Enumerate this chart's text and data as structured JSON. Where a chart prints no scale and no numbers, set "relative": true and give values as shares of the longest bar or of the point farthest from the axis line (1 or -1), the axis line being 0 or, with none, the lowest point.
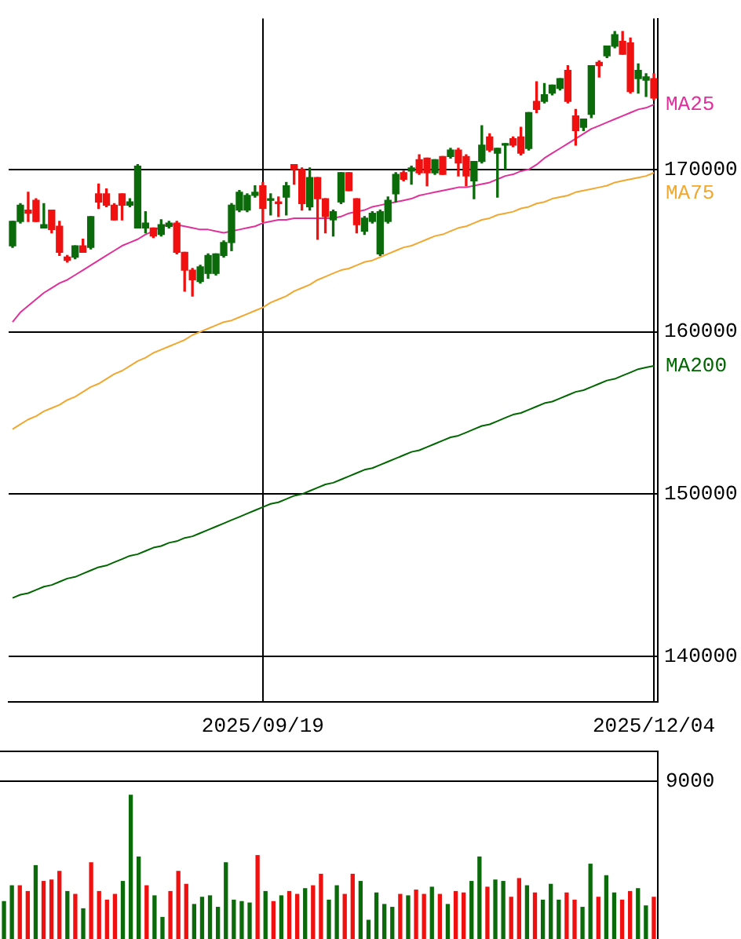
{
  "chart_data": [
    {
      "type": "candlestick",
      "categories": [
        null,
        null,
        null,
        null,
        null,
        null,
        null,
        null,
        null,
        null,
        null,
        null,
        null,
        null,
        null,
        null,
        null,
        null,
        null,
        null,
        null,
        null,
        null,
        null,
        null,
        null,
        null,
        null,
        null,
        null,
        null,
        null,
        "2025/09/19",
        null,
        null,
        null,
        null,
        null,
        null,
        null,
        null,
        null,
        null,
        null,
        null,
        null,
        null,
        null,
        null,
        null,
        null,
        null,
        null,
        null,
        null,
        null,
        null,
        null,
        null,
        null,
        null,
        null,
        null,
        null,
        null,
        null,
        null,
        null,
        null,
        null,
        null,
        null,
        null,
        null,
        null,
        null,
        null,
        null,
        null,
        null,
        null,
        null,
        "2025/12/04"
      ],
      "ohlc": [
        [
          165300,
          166800,
          165200,
          166800
        ],
        [
          166800,
          167900,
          166700,
          167800
        ],
        [
          167500,
          168600,
          166800,
          167300
        ],
        [
          168100,
          168200,
          166800,
          166800
        ],
        [
          166400,
          167900,
          166400,
          166600
        ],
        [
          167500,
          167500,
          166100,
          166300
        ],
        [
          166500,
          166800,
          164700,
          164900
        ],
        [
          164600,
          164700,
          164300,
          164400
        ],
        [
          164600,
          165300,
          164500,
          165300
        ],
        [
          165300,
          165700,
          164900,
          164900
        ],
        [
          165200,
          167100,
          165100,
          167100
        ],
        [
          168500,
          169100,
          167600,
          168000
        ],
        [
          168500,
          168800,
          167700,
          167800
        ],
        [
          167800,
          167900,
          166900,
          166900
        ],
        [
          168500,
          168500,
          166900,
          167800
        ],
        [
          167800,
          168200,
          167700,
          168000
        ],
        [
          166400,
          170300,
          166400,
          170200
        ],
        [
          166400,
          167400,
          166100,
          166700
        ],
        [
          166400,
          166400,
          165800,
          165900
        ],
        [
          166000,
          166900,
          165900,
          166600
        ],
        [
          166500,
          166800,
          166400,
          166700
        ],
        [
          166700,
          166800,
          164800,
          164900
        ],
        [
          164900,
          164900,
          162500,
          163800
        ],
        [
          163800,
          163900,
          162200,
          163200
        ],
        [
          163100,
          164100,
          163000,
          164000
        ],
        [
          163600,
          164800,
          163300,
          164700
        ],
        [
          163600,
          164800,
          163500,
          164800
        ],
        [
          164700,
          165600,
          164600,
          165500
        ],
        [
          165500,
          167900,
          165000,
          167800
        ],
        [
          167500,
          168700,
          167400,
          168600
        ],
        [
          167500,
          168500,
          167400,
          168400
        ],
        [
          168400,
          169000,
          168300,
          168600
        ],
        [
          169000,
          169200,
          166800,
          167600
        ],
        [
          168100,
          168500,
          167200,
          168200
        ],
        [
          168000,
          168300,
          167100,
          167900
        ],
        [
          168300,
          169200,
          167200,
          169000
        ],
        [
          170300,
          170300,
          169100,
          170000
        ],
        [
          170000,
          170100,
          167500,
          167900
        ],
        [
          167700,
          170100,
          167500,
          169500
        ],
        [
          169500,
          169500,
          165700,
          168200
        ],
        [
          168200,
          168200,
          166100,
          167100
        ],
        [
          166900,
          167500,
          165900,
          167400
        ],
        [
          168000,
          169800,
          167900,
          169800
        ],
        [
          169800,
          169800,
          168700,
          168700
        ],
        [
          168200,
          168200,
          166100,
          166600
        ],
        [
          166200,
          167100,
          166000,
          167000
        ],
        [
          166800,
          167400,
          166700,
          167300
        ],
        [
          164800,
          167500,
          164700,
          167400
        ],
        [
          166800,
          168300,
          166700,
          168100
        ],
        [
          168500,
          169800,
          168000,
          169700
        ],
        [
          169800,
          169900,
          169300,
          169400
        ],
        [
          169900,
          170200,
          169100,
          170100
        ],
        [
          170600,
          170900,
          169700,
          169800
        ],
        [
          170700,
          170700,
          169000,
          169800
        ],
        [
          169800,
          170600,
          169700,
          170600
        ],
        [
          170800,
          170800,
          169700,
          169700
        ],
        [
          170800,
          171300,
          170700,
          171200
        ],
        [
          171200,
          171300,
          169600,
          170400
        ],
        [
          170800,
          170900,
          169000,
          169600
        ],
        [
          169300,
          170500,
          168200,
          170500
        ],
        [
          170500,
          172700,
          170400,
          171500
        ],
        [
          172000,
          172200,
          171100,
          171200
        ],
        [
          171000,
          171300,
          168300,
          171300
        ],
        [
          171500,
          171600,
          170000,
          171600
        ],
        [
          171900,
          172000,
          171400,
          171500
        ],
        [
          172000,
          172600,
          170900,
          171000
        ],
        [
          171300,
          173500,
          171200,
          173500
        ],
        [
          174200,
          175400,
          173500,
          173700
        ],
        [
          174200,
          175300,
          174100,
          174600
        ],
        [
          174700,
          175200,
          174600,
          175200
        ],
        [
          175000,
          175600,
          174900,
          175600
        ],
        [
          176100,
          176400,
          174100,
          174200
        ],
        [
          173300,
          173700,
          171500,
          172400
        ],
        [
          172600,
          173100,
          172400,
          173100
        ],
        [
          173400,
          176400,
          173200,
          176400
        ],
        [
          176600,
          176700,
          175700,
          176400
        ],
        [
          177000,
          177600,
          176900,
          177600
        ],
        [
          177600,
          178500,
          177500,
          178300
        ],
        [
          177900,
          178500,
          177100,
          177100
        ],
        [
          177800,
          178100,
          174700,
          174800
        ],
        [
          175600,
          176500,
          174700,
          176100
        ],
        [
          175500,
          175900,
          174500,
          175700
        ],
        [
          175600,
          175900,
          174300,
          174400
        ]
      ],
      "colors": [
        "#0b6b0b",
        "#0b6b0b",
        "#f01010",
        "#f01010",
        "#0b6b0b",
        "#f01010",
        "#f01010",
        "#f01010",
        "#0b6b0b",
        "#f01010",
        "#0b6b0b",
        "#f01010",
        "#f01010",
        "#f01010",
        "#f01010",
        "#0b6b0b",
        "#0b6b0b",
        "#0b6b0b",
        "#f01010",
        "#0b6b0b",
        "#0b6b0b",
        "#f01010",
        "#f01010",
        "#f01010",
        "#0b6b0b",
        "#0b6b0b",
        "#0b6b0b",
        "#0b6b0b",
        "#0b6b0b",
        "#0b6b0b",
        "#0b6b0b",
        "#0b6b0b",
        "#f01010",
        "#0b6b0b",
        "#f01010",
        "#0b6b0b",
        "#f01010",
        "#f01010",
        "#0b6b0b",
        "#f01010",
        "#f01010",
        "#0b6b0b",
        "#0b6b0b",
        "#f01010",
        "#f01010",
        "#0b6b0b",
        "#0b6b0b",
        "#0b6b0b",
        "#0b6b0b",
        "#0b6b0b",
        "#f01010",
        "#0b6b0b",
        "#f01010",
        "#f01010",
        "#0b6b0b",
        "#f01010",
        "#0b6b0b",
        "#f01010",
        "#f01010",
        "#0b6b0b",
        "#0b6b0b",
        "#f01010",
        "#0b6b0b",
        "#0b6b0b",
        "#f01010",
        "#f01010",
        "#0b6b0b",
        "#f01010",
        "#0b6b0b",
        "#0b6b0b",
        "#0b6b0b",
        "#f01010",
        "#f01010",
        "#0b6b0b",
        "#0b6b0b",
        "#f01010",
        "#0b6b0b",
        "#0b6b0b",
        "#f01010",
        "#f01010",
        "#0b6b0b",
        "#0b6b0b",
        "#f01010"
      ],
      "series": [
        {
          "name": "MA25",
          "color": "#e0309a",
          "type": "line",
          "values": [
            160600,
            161200,
            161600,
            162000,
            162400,
            162700,
            163000,
            163200,
            163500,
            163800,
            164100,
            164400,
            164700,
            165000,
            165300,
            165500,
            165700,
            166000,
            166200,
            166500,
            166600,
            166600,
            166500,
            166400,
            166300,
            166300,
            166200,
            166100,
            166200,
            166300,
            166400,
            166500,
            166700,
            166800,
            166900,
            166900,
            167000,
            167000,
            167000,
            167000,
            167000,
            167000,
            167100,
            167300,
            167400,
            167500,
            167700,
            167800,
            167900,
            168000,
            168100,
            168200,
            168400,
            168500,
            168600,
            168700,
            168800,
            168900,
            168900,
            169000,
            169100,
            169200,
            169400,
            169600,
            169700,
            169900,
            170000,
            170300,
            170700,
            171000,
            171300,
            171600,
            171900,
            172200,
            172500,
            172700,
            172900,
            173100,
            173300,
            173500,
            173700,
            173800,
            174000
          ]
        },
        {
          "name": "MA75",
          "color": "#f0a830",
          "type": "line",
          "values": [
            154000,
            154300,
            154600,
            154800,
            155100,
            155300,
            155500,
            155800,
            156000,
            156300,
            156600,
            156800,
            157100,
            157400,
            157600,
            157900,
            158200,
            158400,
            158700,
            158900,
            159100,
            159300,
            159500,
            159800,
            160000,
            160200,
            160400,
            160600,
            160700,
            160900,
            161100,
            161300,
            161500,
            161800,
            162000,
            162200,
            162500,
            162700,
            162900,
            163200,
            163400,
            163600,
            163800,
            163900,
            164100,
            164300,
            164400,
            164600,
            164800,
            165000,
            165200,
            165300,
            165500,
            165700,
            165900,
            166000,
            166200,
            166400,
            166500,
            166700,
            166900,
            167000,
            167200,
            167300,
            167400,
            167600,
            167700,
            167900,
            168000,
            168200,
            168300,
            168400,
            168600,
            168700,
            168800,
            168900,
            169000,
            169200,
            169300,
            169400,
            169500,
            169600,
            169800
          ]
        },
        {
          "name": "MA200",
          "color": "#006600",
          "type": "line",
          "values": [
            143600,
            143800,
            143900,
            144100,
            144300,
            144400,
            144600,
            144800,
            144900,
            145100,
            145300,
            145500,
            145600,
            145800,
            146000,
            146200,
            146300,
            146500,
            146700,
            146800,
            147000,
            147100,
            147300,
            147400,
            147600,
            147800,
            148000,
            148200,
            148400,
            148600,
            148800,
            149000,
            149200,
            149400,
            149500,
            149700,
            149900,
            150000,
            150200,
            150400,
            150600,
            150700,
            150900,
            151100,
            151300,
            151500,
            151600,
            151800,
            152000,
            152200,
            152400,
            152600,
            152700,
            152900,
            153100,
            153300,
            153500,
            153600,
            153800,
            154000,
            154200,
            154300,
            154500,
            154700,
            154900,
            155000,
            155200,
            155400,
            155600,
            155700,
            155900,
            156100,
            156300,
            156400,
            156600,
            156800,
            157000,
            157100,
            157300,
            157500,
            157700,
            157800,
            157900
          ]
        }
      ],
      "ylim": [
        137200,
        179300
      ],
      "yticks": [
        140000,
        150000,
        160000,
        170000
      ],
      "grid": true
    },
    {
      "type": "bar",
      "relative": true,
      "categories": [
        null,
        null,
        null,
        null,
        null,
        null,
        null,
        null,
        null,
        null,
        null,
        null,
        null,
        null,
        null,
        null,
        null,
        null,
        null,
        null,
        null,
        null,
        null,
        null,
        null,
        null,
        null,
        null,
        null,
        null,
        null,
        null,
        null,
        null,
        null,
        null,
        null,
        null,
        null,
        null,
        null,
        null,
        null,
        null,
        null,
        null,
        null,
        null,
        null,
        null,
        null,
        null,
        null,
        null,
        null,
        null,
        null,
        null,
        null,
        null,
        null,
        null,
        null,
        null,
        null,
        null,
        null,
        null,
        null,
        null,
        null,
        null,
        null,
        null,
        null,
        null,
        null,
        null,
        null,
        null,
        null,
        null,
        null
      ],
      "values": [
        0.26,
        0.37,
        0.37,
        0.33,
        0.51,
        0.4,
        0.41,
        0.47,
        0.33,
        0.31,
        0.21,
        0.53,
        0.33,
        0.27,
        0.31,
        0.4,
        1,
        0.57,
        0.37,
        0.3,
        0.15,
        0.33,
        0.47,
        0.38,
        0.24,
        0.29,
        0.3,
        0.22,
        0.53,
        0.27,
        0.26,
        0.25,
        0.58,
        0.33,
        0.26,
        0.3,
        0.33,
        0.31,
        0.35,
        0.37,
        0.45,
        0.27,
        0.37,
        0.31,
        0.45,
        0.4,
        0.13,
        0.32,
        0.24,
        0.22,
        0.31,
        0.3,
        0.34,
        0.31,
        0.36,
        0.31,
        0.24,
        0.33,
        0.32,
        0.4,
        0.57,
        0.36,
        0.41,
        0.4,
        0.29,
        0.42,
        0.37,
        0.32,
        0.27,
        0.38,
        0.27,
        0.32,
        0.27,
        0.22,
        0.52,
        0.29,
        0.44,
        0.32,
        0.27,
        0.33,
        0.35,
        0.23,
        0.29
      ],
      "colors": [
        "#0b6b0b",
        "#0b6b0b",
        "#f01010",
        "#f01010",
        "#0b6b0b",
        "#f01010",
        "#f01010",
        "#f01010",
        "#0b6b0b",
        "#f01010",
        "#0b6b0b",
        "#f01010",
        "#f01010",
        "#f01010",
        "#f01010",
        "#0b6b0b",
        "#0b6b0b",
        "#0b6b0b",
        "#f01010",
        "#0b6b0b",
        "#0b6b0b",
        "#f01010",
        "#f01010",
        "#f01010",
        "#0b6b0b",
        "#0b6b0b",
        "#0b6b0b",
        "#0b6b0b",
        "#0b6b0b",
        "#0b6b0b",
        "#0b6b0b",
        "#0b6b0b",
        "#f01010",
        "#0b6b0b",
        "#f01010",
        "#0b6b0b",
        "#f01010",
        "#f01010",
        "#0b6b0b",
        "#f01010",
        "#f01010",
        "#0b6b0b",
        "#0b6b0b",
        "#f01010",
        "#f01010",
        "#0b6b0b",
        "#0b6b0b",
        "#0b6b0b",
        "#0b6b0b",
        "#0b6b0b",
        "#f01010",
        "#0b6b0b",
        "#f01010",
        "#f01010",
        "#0b6b0b",
        "#f01010",
        "#0b6b0b",
        "#f01010",
        "#f01010",
        "#0b6b0b",
        "#0b6b0b",
        "#f01010",
        "#0b6b0b",
        "#0b6b0b",
        "#f01010",
        "#f01010",
        "#0b6b0b",
        "#f01010",
        "#0b6b0b",
        "#0b6b0b",
        "#0b6b0b",
        "#f01010",
        "#f01010",
        "#0b6b0b",
        "#0b6b0b",
        "#f01010",
        "#0b6b0b",
        "#0b6b0b",
        "#f01010",
        "#f01010",
        "#0b6b0b",
        "#0b6b0b",
        "#f01010"
      ],
      "annotations": [
        "9000"
      ]
    }
  ]
}
